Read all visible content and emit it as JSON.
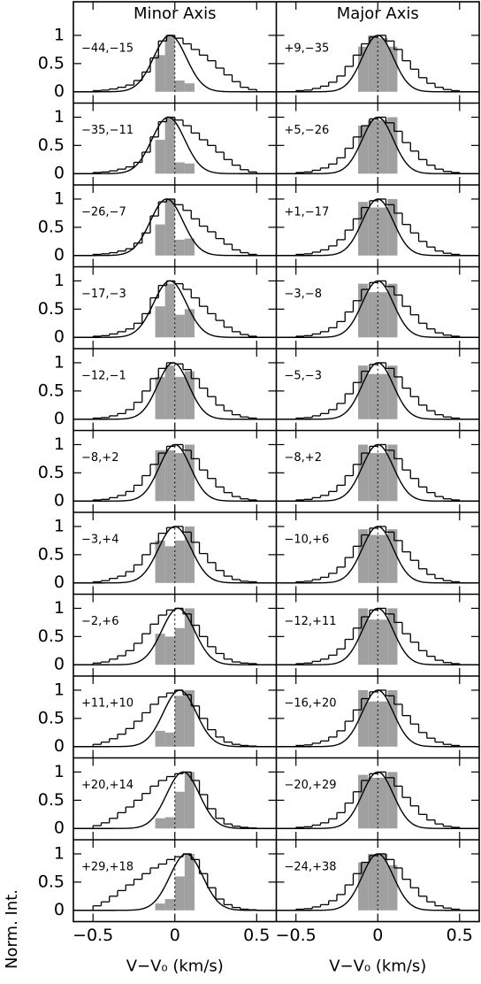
{
  "chart_data": {
    "type": "histogram",
    "xlabel": "V−V₀ (km/s)",
    "ylabel": "Norm. Int.",
    "xlim": [
      -0.62,
      0.62
    ],
    "ylim": [
      -0.2,
      1.25
    ],
    "xticks": [
      {
        "value": -0.5,
        "label": "−0.5"
      },
      0,
      0.5
    ],
    "yticks": [
      0,
      0.5,
      1
    ],
    "bins": [
      -0.5,
      -0.45,
      -0.4,
      -0.35,
      -0.3,
      -0.25,
      -0.2,
      -0.15,
      -0.1,
      -0.05,
      0,
      0.05,
      0.1,
      0.15,
      0.2,
      0.25,
      0.3,
      0.35,
      0.4,
      0.45,
      0.5
    ],
    "gray_bins": [
      -0.12,
      -0.06,
      0,
      0.06,
      0.12
    ],
    "gray_color": "#a0a0a0",
    "line_color": "#000000",
    "columns": [
      {
        "title": "Minor Axis",
        "panels": [
          {
            "label": "−44,−15",
            "hist": [
              0.02,
              0.03,
              0.05,
              0.08,
              0.12,
              0.2,
              0.35,
              0.6,
              0.9,
              1.0,
              0.95,
              0.85,
              0.75,
              0.65,
              0.55,
              0.42,
              0.3,
              0.18,
              0.08,
              0.04
            ],
            "gray": [
              0.65,
              1.0,
              0.2,
              0.15
            ],
            "fit": {
              "center": -0.03,
              "sigma": 0.1,
              "amplitude": 1
            }
          },
          {
            "label": "−35,−11",
            "hist": [
              0.02,
              0.03,
              0.05,
              0.08,
              0.12,
              0.2,
              0.38,
              0.65,
              0.92,
              1.0,
              0.95,
              0.85,
              0.72,
              0.6,
              0.5,
              0.38,
              0.25,
              0.15,
              0.07,
              0.03
            ],
            "gray": [
              0.6,
              1.0,
              0.2,
              0.18
            ],
            "fit": {
              "center": -0.04,
              "sigma": 0.1,
              "amplitude": 1
            }
          },
          {
            "label": "−26,−7",
            "hist": [
              0.02,
              0.03,
              0.05,
              0.08,
              0.12,
              0.22,
              0.4,
              0.7,
              0.95,
              1.0,
              0.9,
              0.8,
              0.65,
              0.52,
              0.42,
              0.3,
              0.2,
              0.1,
              0.05,
              0.02
            ],
            "gray": [
              0.55,
              1.0,
              0.28,
              0.3
            ],
            "fit": {
              "center": -0.05,
              "sigma": 0.1,
              "amplitude": 1
            }
          },
          {
            "label": "−17,−3",
            "hist": [
              0.02,
              0.03,
              0.06,
              0.1,
              0.15,
              0.25,
              0.42,
              0.7,
              0.92,
              1.0,
              0.95,
              0.85,
              0.7,
              0.55,
              0.42,
              0.3,
              0.18,
              0.1,
              0.05,
              0.02
            ],
            "gray": [
              0.55,
              0.95,
              0.4,
              0.5
            ],
            "fit": {
              "center": -0.03,
              "sigma": 0.1,
              "amplitude": 1
            }
          },
          {
            "label": "−12,−1",
            "hist": [
              0.02,
              0.03,
              0.06,
              0.1,
              0.17,
              0.3,
              0.5,
              0.72,
              0.9,
              1.0,
              0.98,
              0.88,
              0.72,
              0.55,
              0.4,
              0.25,
              0.15,
              0.08,
              0.04,
              0.02
            ],
            "gray": [
              0.75,
              0.95,
              0.75,
              0.85
            ],
            "fit": {
              "center": -0.01,
              "sigma": 0.095,
              "amplitude": 1
            }
          },
          {
            "label": "−8,+2",
            "hist": [
              0.02,
              0.03,
              0.06,
              0.1,
              0.17,
              0.28,
              0.45,
              0.65,
              0.85,
              0.97,
              1.0,
              0.9,
              0.75,
              0.55,
              0.4,
              0.25,
              0.15,
              0.08,
              0.04,
              0.02
            ],
            "gray": [
              0.9,
              0.9,
              0.85,
              1.0
            ],
            "fit": {
              "center": 0,
              "sigma": 0.095,
              "amplitude": 1
            }
          },
          {
            "label": "−3,+4",
            "hist": [
              0.02,
              0.04,
              0.08,
              0.12,
              0.2,
              0.32,
              0.5,
              0.7,
              0.88,
              0.98,
              1.0,
              0.9,
              0.72,
              0.52,
              0.36,
              0.22,
              0.12,
              0.06,
              0.03,
              0.02
            ],
            "gray": [
              0.75,
              0.65,
              0.75,
              1.0
            ],
            "fit": {
              "center": 0,
              "sigma": 0.1,
              "amplitude": 1
            }
          },
          {
            "label": "−2,+6",
            "hist": [
              0.03,
              0.05,
              0.1,
              0.16,
              0.25,
              0.38,
              0.55,
              0.72,
              0.88,
              0.97,
              1.0,
              0.9,
              0.7,
              0.5,
              0.32,
              0.2,
              0.1,
              0.05,
              0.03,
              0.02
            ],
            "gray": [
              0.55,
              0.5,
              0.65,
              1.0
            ],
            "fit": {
              "center": 0.02,
              "sigma": 0.1,
              "amplitude": 1
            }
          },
          {
            "label": "+11,+10",
            "hist": [
              0.04,
              0.08,
              0.14,
              0.22,
              0.32,
              0.45,
              0.6,
              0.75,
              0.88,
              0.95,
              1.0,
              0.92,
              0.72,
              0.5,
              0.3,
              0.17,
              0.08,
              0.04,
              0.02,
              0.01
            ],
            "gray": [
              0.28,
              0.25,
              0.9,
              1.0
            ],
            "fit": {
              "center": 0.03,
              "sigma": 0.1,
              "amplitude": 1
            }
          },
          {
            "label": "+20,+14",
            "hist": [
              0.05,
              0.1,
              0.18,
              0.28,
              0.38,
              0.5,
              0.62,
              0.75,
              0.85,
              0.92,
              0.97,
              1.0,
              0.85,
              0.6,
              0.35,
              0.18,
              0.08,
              0.04,
              0.02,
              0.01
            ],
            "gray": [
              0.18,
              0.2,
              0.65,
              1.0
            ],
            "fit": {
              "center": 0.05,
              "sigma": 0.1,
              "amplitude": 1
            }
          },
          {
            "label": "+29,+18",
            "hist": [
              0.08,
              0.15,
              0.25,
              0.35,
              0.45,
              0.55,
              0.65,
              0.75,
              0.82,
              0.9,
              0.95,
              1.0,
              0.9,
              0.65,
              0.4,
              0.2,
              0.1,
              0.05,
              0.02,
              0.01
            ],
            "gray": [
              0.12,
              0.2,
              0.6,
              1.0
            ],
            "fit": {
              "center": 0.07,
              "sigma": 0.1,
              "amplitude": 1
            }
          }
        ]
      },
      {
        "title": "Major Axis",
        "panels": [
          {
            "label": "+9,−35",
            "hist": [
              0.02,
              0.03,
              0.06,
              0.1,
              0.17,
              0.28,
              0.45,
              0.65,
              0.85,
              0.97,
              1.0,
              0.9,
              0.75,
              0.55,
              0.4,
              0.25,
              0.15,
              0.08,
              0.04,
              0.02
            ],
            "gray": [
              0.8,
              1.0,
              0.95,
              0.8
            ],
            "fit": {
              "center": 0,
              "sigma": 0.095,
              "amplitude": 1
            }
          },
          {
            "label": "+5,−26",
            "hist": [
              0.02,
              0.03,
              0.06,
              0.1,
              0.17,
              0.28,
              0.45,
              0.65,
              0.85,
              0.97,
              1.0,
              0.9,
              0.75,
              0.55,
              0.4,
              0.25,
              0.15,
              0.08,
              0.04,
              0.02
            ],
            "gray": [
              0.85,
              0.95,
              0.95,
              1.0
            ],
            "fit": {
              "center": 0,
              "sigma": 0.095,
              "amplitude": 1
            }
          },
          {
            "label": "+1,−17",
            "hist": [
              0.02,
              0.03,
              0.06,
              0.1,
              0.17,
              0.28,
              0.45,
              0.65,
              0.85,
              0.97,
              1.0,
              0.9,
              0.75,
              0.55,
              0.4,
              0.25,
              0.15,
              0.08,
              0.04,
              0.02
            ],
            "gray": [
              0.95,
              0.85,
              0.85,
              1.0
            ],
            "fit": {
              "center": 0,
              "sigma": 0.095,
              "amplitude": 1
            }
          },
          {
            "label": "−3,−8",
            "hist": [
              0.02,
              0.03,
              0.06,
              0.1,
              0.17,
              0.28,
              0.45,
              0.65,
              0.85,
              0.97,
              1.0,
              0.9,
              0.75,
              0.55,
              0.4,
              0.25,
              0.15,
              0.08,
              0.04,
              0.02
            ],
            "gray": [
              0.95,
              0.8,
              0.8,
              0.95
            ],
            "fit": {
              "center": 0,
              "sigma": 0.095,
              "amplitude": 1
            }
          },
          {
            "label": "−5,−3",
            "hist": [
              0.02,
              0.03,
              0.06,
              0.1,
              0.17,
              0.28,
              0.45,
              0.65,
              0.85,
              0.97,
              1.0,
              0.9,
              0.75,
              0.55,
              0.4,
              0.25,
              0.15,
              0.08,
              0.04,
              0.02
            ],
            "gray": [
              0.95,
              0.8,
              0.8,
              0.95
            ],
            "fit": {
              "center": 0,
              "sigma": 0.095,
              "amplitude": 1
            }
          },
          {
            "label": "−8,+2",
            "hist": [
              0.02,
              0.03,
              0.06,
              0.1,
              0.17,
              0.28,
              0.45,
              0.65,
              0.85,
              0.97,
              1.0,
              0.9,
              0.75,
              0.55,
              0.4,
              0.25,
              0.15,
              0.08,
              0.04,
              0.02
            ],
            "gray": [
              1.0,
              0.85,
              0.85,
              1.0
            ],
            "fit": {
              "center": 0,
              "sigma": 0.095,
              "amplitude": 1
            }
          },
          {
            "label": "−10,+6",
            "hist": [
              0.02,
              0.03,
              0.06,
              0.1,
              0.17,
              0.28,
              0.45,
              0.65,
              0.85,
              0.97,
              1.0,
              0.9,
              0.75,
              0.55,
              0.4,
              0.25,
              0.15,
              0.08,
              0.04,
              0.02
            ],
            "gray": [
              0.95,
              0.85,
              0.85,
              0.95
            ],
            "fit": {
              "center": 0,
              "sigma": 0.095,
              "amplitude": 1
            }
          },
          {
            "label": "−12,+11",
            "hist": [
              0.02,
              0.03,
              0.06,
              0.1,
              0.17,
              0.28,
              0.45,
              0.65,
              0.85,
              0.97,
              1.0,
              0.9,
              0.75,
              0.55,
              0.4,
              0.25,
              0.15,
              0.08,
              0.04,
              0.02
            ],
            "gray": [
              1.0,
              0.8,
              0.8,
              1.0
            ],
            "fit": {
              "center": 0,
              "sigma": 0.095,
              "amplitude": 1
            }
          },
          {
            "label": "−16,+20",
            "hist": [
              0.02,
              0.03,
              0.06,
              0.1,
              0.17,
              0.28,
              0.45,
              0.65,
              0.85,
              0.97,
              1.0,
              0.9,
              0.75,
              0.55,
              0.4,
              0.25,
              0.15,
              0.08,
              0.04,
              0.02
            ],
            "gray": [
              1.0,
              0.8,
              0.8,
              1.0
            ],
            "fit": {
              "center": 0,
              "sigma": 0.095,
              "amplitude": 1
            }
          },
          {
            "label": "−20,+29",
            "hist": [
              0.02,
              0.03,
              0.06,
              0.1,
              0.17,
              0.28,
              0.45,
              0.65,
              0.85,
              0.97,
              1.0,
              0.9,
              0.75,
              0.55,
              0.4,
              0.25,
              0.15,
              0.08,
              0.04,
              0.02
            ],
            "gray": [
              0.95,
              0.9,
              0.9,
              1.0
            ],
            "fit": {
              "center": 0,
              "sigma": 0.095,
              "amplitude": 1
            }
          },
          {
            "label": "−24,+38",
            "hist": [
              0.02,
              0.03,
              0.06,
              0.1,
              0.17,
              0.28,
              0.45,
              0.65,
              0.85,
              0.97,
              1.0,
              0.9,
              0.75,
              0.55,
              0.4,
              0.25,
              0.15,
              0.08,
              0.04,
              0.02
            ],
            "gray": [
              0.85,
              1.0,
              1.0,
              0.8
            ],
            "fit": {
              "center": 0,
              "sigma": 0.095,
              "amplitude": 1
            }
          }
        ]
      }
    ]
  }
}
